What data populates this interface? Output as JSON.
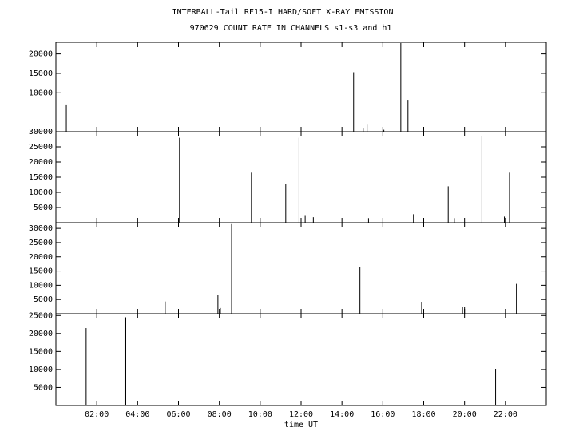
{
  "chart_data": [
    {
      "type": "bar",
      "title": "INTERBALL-Tail RF15-I HARD/SOFT X-RAY EMISSION",
      "subtitle": "970629  COUNT RATE IN CHANNELS s1-s3 and h1",
      "x": [
        0.51,
        14.57,
        15.04,
        15.23,
        16.05,
        16.88,
        17.23
      ],
      "values": [
        7000,
        15300,
        1000,
        2000,
        500,
        22800,
        8200
      ],
      "color": "#000000",
      "xlim": [
        0,
        24
      ],
      "ylim": [
        0,
        23000
      ],
      "yticks": [
        10000,
        15000,
        20000
      ]
    },
    {
      "type": "bar",
      "x": [
        6.05,
        9.57,
        11.25,
        11.9,
        12.2,
        12.6,
        15.3,
        17.5,
        19.2,
        19.5,
        20.85,
        21.95,
        22.2
      ],
      "values": [
        28000,
        16500,
        12800,
        28000,
        2500,
        1800,
        1500,
        2800,
        12000,
        1500,
        28500,
        2000,
        16500
      ],
      "color": "#000000",
      "xlim": [
        0,
        24
      ],
      "ylim": [
        0,
        30000
      ],
      "yticks": [
        5000,
        10000,
        15000,
        20000,
        25000,
        30000
      ]
    },
    {
      "type": "bar",
      "x": [
        5.35,
        7.93,
        8.05,
        8.6,
        14.88,
        17.9,
        19.9,
        20.0,
        22.54
      ],
      "values": [
        4300,
        6500,
        2000,
        31500,
        16500,
        4200,
        2500,
        2500,
        10500
      ],
      "color": "#000000",
      "xlim": [
        0,
        24
      ],
      "ylim": [
        0,
        32000
      ],
      "yticks": [
        5000,
        10000,
        15000,
        20000,
        25000,
        30000
      ]
    },
    {
      "type": "bar",
      "xlabel": "time UT",
      "x": [
        1.48,
        3.38,
        3.42,
        21.52
      ],
      "values": [
        21500,
        24500,
        24500,
        10200
      ],
      "color": "#000000",
      "xlim": [
        0,
        24
      ],
      "ylim": [
        0,
        25500
      ],
      "yticks": [
        5000,
        10000,
        15000,
        20000,
        25000
      ],
      "xticks": [
        {
          "value": 2,
          "label": "02:00"
        },
        {
          "value": 4,
          "label": "04:00"
        },
        {
          "value": 6,
          "label": "06:00"
        },
        {
          "value": 8,
          "label": "08:00"
        },
        {
          "value": 10,
          "label": "10:00"
        },
        {
          "value": 12,
          "label": "12:00"
        },
        {
          "value": 14,
          "label": "14:00"
        },
        {
          "value": 16,
          "label": "16:00"
        },
        {
          "value": 18,
          "label": "18:00"
        },
        {
          "value": 20,
          "label": "20:00"
        },
        {
          "value": 22,
          "label": "22:00"
        }
      ]
    }
  ]
}
